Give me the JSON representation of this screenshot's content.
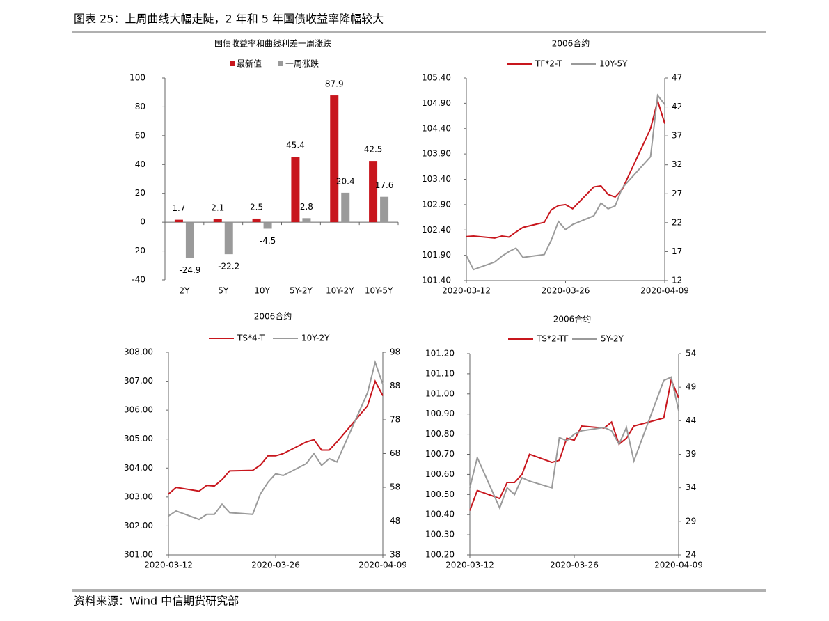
{
  "title": "图表 25：上周曲线大幅走陡，2 年和 5 年国债收益率降幅较大",
  "source": "资料来源：Wind  中信期货研究部",
  "chart_data": [
    {
      "type": "bar",
      "title": "国债收益率和曲线利差一周涨跌",
      "categories": [
        "2Y",
        "5Y",
        "10Y",
        "5Y-2Y",
        "10Y-2Y",
        "10Y-5Y"
      ],
      "series": [
        {
          "name": "最新值",
          "color": "#c8161d",
          "values": [
            1.7,
            2.1,
            2.5,
            45.4,
            87.9,
            42.5
          ]
        },
        {
          "name": "一周涨跌",
          "color": "#9a9a9a",
          "values": [
            -24.9,
            -22.2,
            -4.5,
            2.8,
            20.4,
            17.6
          ]
        }
      ],
      "ylim": [
        -40,
        100
      ],
      "yticks": [
        -40,
        -20,
        0,
        20,
        40,
        60,
        80,
        100
      ],
      "grid": false
    },
    {
      "type": "line",
      "title": "2006合约",
      "x": [
        "2020-03-12",
        "2020-03-13",
        "2020-03-16",
        "2020-03-17",
        "2020-03-18",
        "2020-03-19",
        "2020-03-20",
        "2020-03-23",
        "2020-03-24",
        "2020-03-25",
        "2020-03-26",
        "2020-03-27",
        "2020-03-30",
        "2020-03-31",
        "2020-04-01",
        "2020-04-02",
        "2020-04-03",
        "2020-04-07",
        "2020-04-08",
        "2020-04-09"
      ],
      "xlim": [
        "2020-03-12",
        "2020-04-09"
      ],
      "xticks": [
        "2020-03-12",
        "2020-03-26",
        "2020-04-09"
      ],
      "series": [
        {
          "name": "TF*2-T",
          "color": "#c8161d",
          "axis": "y",
          "values": [
            102.27,
            102.28,
            102.24,
            102.28,
            102.26,
            102.36,
            102.45,
            102.55,
            102.8,
            102.88,
            102.9,
            102.82,
            103.25,
            103.27,
            103.1,
            103.05,
            103.2,
            104.4,
            104.95,
            104.5
          ]
        },
        {
          "name": "10Y-5Y",
          "color": "#9a9a9a",
          "axis": "y2",
          "values": [
            16.3,
            13.9,
            15.2,
            16.2,
            17,
            17.6,
            16,
            16.5,
            19,
            22.2,
            20.8,
            21.7,
            23.2,
            25.4,
            24.4,
            24.9,
            28,
            33.4,
            44,
            42.4
          ]
        }
      ],
      "ylim": [
        101.4,
        105.4
      ],
      "yticks": [
        {
          "value": 101.4,
          "label": "101.40"
        },
        {
          "value": 101.9,
          "label": "101.90"
        },
        {
          "value": 102.4,
          "label": "102.40"
        },
        {
          "value": 102.9,
          "label": "102.90"
        },
        {
          "value": 103.4,
          "label": "103.40"
        },
        {
          "value": 103.9,
          "label": "103.90"
        },
        {
          "value": 104.4,
          "label": "104.40"
        },
        {
          "value": 104.9,
          "label": "104.90"
        },
        {
          "value": 105.4,
          "label": "105.40"
        }
      ],
      "y2lim": [
        12,
        47
      ],
      "y2ticks": [
        12,
        17,
        22,
        27,
        32,
        37,
        42,
        47
      ]
    },
    {
      "type": "line",
      "title": "2006合约",
      "x": [
        "2020-03-12",
        "2020-03-13",
        "2020-03-16",
        "2020-03-17",
        "2020-03-18",
        "2020-03-19",
        "2020-03-20",
        "2020-03-23",
        "2020-03-24",
        "2020-03-25",
        "2020-03-26",
        "2020-03-27",
        "2020-03-30",
        "2020-03-31",
        "2020-04-01",
        "2020-04-02",
        "2020-04-03",
        "2020-04-07",
        "2020-04-08",
        "2020-04-09"
      ],
      "xlim": [
        "2020-03-12",
        "2020-04-09"
      ],
      "xticks": [
        "2020-03-12",
        "2020-03-26",
        "2020-04-09"
      ],
      "series": [
        {
          "name": "TS*4-T",
          "color": "#c8161d",
          "axis": "y",
          "values": [
            303.1,
            303.33,
            303.2,
            303.4,
            303.38,
            303.6,
            303.9,
            303.92,
            304.1,
            304.42,
            304.42,
            304.5,
            304.9,
            304.98,
            304.62,
            304.62,
            304.9,
            306.15,
            307.0,
            306.5
          ]
        },
        {
          "name": "10Y-2Y",
          "color": "#9a9a9a",
          "axis": "y2",
          "values": [
            49.5,
            51,
            48.5,
            50,
            50,
            53,
            50.5,
            50,
            56,
            59.5,
            62,
            61.5,
            65,
            68,
            64.5,
            66.5,
            65.5,
            86,
            95,
            88.5
          ]
        }
      ],
      "ylim": [
        301,
        308
      ],
      "yticks": [
        {
          "value": 301,
          "label": "301.00"
        },
        {
          "value": 302,
          "label": "302.00"
        },
        {
          "value": 303,
          "label": "303.00"
        },
        {
          "value": 304,
          "label": "304.00"
        },
        {
          "value": 305,
          "label": "305.00"
        },
        {
          "value": 306,
          "label": "306.00"
        },
        {
          "value": 307,
          "label": "307.00"
        },
        {
          "value": 308,
          "label": "308.00"
        }
      ],
      "y2lim": [
        38,
        98
      ],
      "y2ticks": [
        38,
        48,
        58,
        68,
        78,
        88,
        98
      ]
    },
    {
      "type": "line",
      "title": "2006合约",
      "x": [
        "2020-03-12",
        "2020-03-13",
        "2020-03-16",
        "2020-03-17",
        "2020-03-18",
        "2020-03-19",
        "2020-03-20",
        "2020-03-23",
        "2020-03-24",
        "2020-03-25",
        "2020-03-26",
        "2020-03-27",
        "2020-03-30",
        "2020-03-31",
        "2020-04-01",
        "2020-04-02",
        "2020-04-03",
        "2020-04-07",
        "2020-04-08",
        "2020-04-09"
      ],
      "xlim": [
        "2020-03-12",
        "2020-04-09"
      ],
      "xticks": [
        "2020-03-12",
        "2020-03-26",
        "2020-04-09"
      ],
      "series": [
        {
          "name": "TS*2-TF",
          "color": "#c8161d",
          "axis": "y",
          "values": [
            100.42,
            100.52,
            100.48,
            100.56,
            100.56,
            100.6,
            100.7,
            100.66,
            100.67,
            100.78,
            100.77,
            100.84,
            100.83,
            100.86,
            100.75,
            100.78,
            100.84,
            100.88,
            101.07,
            100.98
          ]
        },
        {
          "name": "5Y-2Y",
          "color": "#9a9a9a",
          "axis": "y2",
          "values": [
            34,
            38.5,
            31,
            34,
            33,
            35.5,
            35,
            34,
            41.5,
            41,
            42,
            42.5,
            43,
            42.5,
            40.5,
            43,
            38,
            50,
            50.5,
            45.5
          ]
        }
      ],
      "ylim": [
        100.2,
        101.2
      ],
      "yticks": [
        {
          "value": 100.2,
          "label": "100.20"
        },
        {
          "value": 100.3,
          "label": "100.30"
        },
        {
          "value": 100.4,
          "label": "100.40"
        },
        {
          "value": 100.5,
          "label": "100.50"
        },
        {
          "value": 100.6,
          "label": "100.60"
        },
        {
          "value": 100.7,
          "label": "100.70"
        },
        {
          "value": 100.8,
          "label": "100.80"
        },
        {
          "value": 100.9,
          "label": "100.90"
        },
        {
          "value": 101.0,
          "label": "101.00"
        },
        {
          "value": 101.1,
          "label": "101.10"
        },
        {
          "value": 101.2,
          "label": "101.20"
        }
      ],
      "y2lim": [
        24,
        54
      ],
      "y2ticks": [
        24,
        29,
        34,
        39,
        44,
        49,
        54
      ]
    }
  ]
}
